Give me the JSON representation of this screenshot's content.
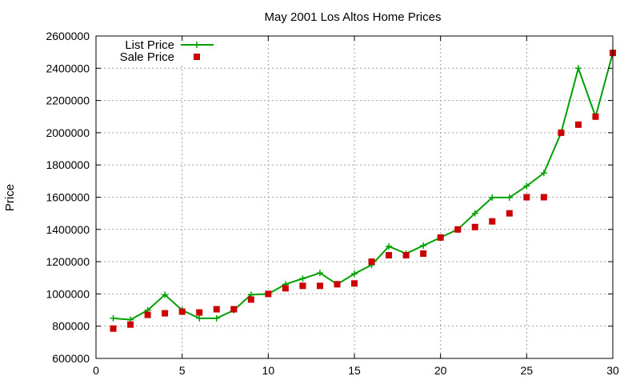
{
  "chart_data": {
    "type": "line",
    "title": "May 2001 Los Altos Home Prices",
    "xlabel": "",
    "ylabel": "Price",
    "xlim": [
      0,
      30
    ],
    "ylim": [
      600000,
      2600000
    ],
    "xticks": [
      0,
      5,
      10,
      15,
      20,
      25,
      30
    ],
    "yticks": [
      600000,
      800000,
      1000000,
      1200000,
      1400000,
      1600000,
      1800000,
      2000000,
      2200000,
      2400000,
      2600000
    ],
    "xtick_labels": [
      "0",
      "5",
      "10",
      "15",
      "20",
      "25",
      "30"
    ],
    "ytick_labels": [
      "600000",
      "800000",
      "1000000",
      "1200000",
      "1400000",
      "1600000",
      "1800000",
      "2000000",
      "2200000",
      "2400000",
      "2600000"
    ],
    "grid": true,
    "legend_position": "top-left",
    "series": [
      {
        "name": "List Price",
        "style": "linespoints",
        "marker": "plus",
        "color": "#00a000",
        "x": [
          1,
          2,
          3,
          4,
          5,
          6,
          7,
          8,
          9,
          10,
          11,
          12,
          13,
          14,
          15,
          16,
          17,
          18,
          19,
          20,
          21,
          22,
          23,
          24,
          25,
          26,
          27,
          28,
          29,
          30
        ],
        "y": [
          849000,
          840000,
          899000,
          995000,
          899000,
          849000,
          849000,
          899000,
          995000,
          1000000,
          1060000,
          1095000,
          1130000,
          1060000,
          1125000,
          1180000,
          1295000,
          1250000,
          1300000,
          1350000,
          1400000,
          1500000,
          1598000,
          1598000,
          1670000,
          1750000,
          2000000,
          2400000,
          2100000,
          2495000
        ]
      },
      {
        "name": "Sale Price",
        "style": "points",
        "marker": "square",
        "color": "#cc0000",
        "x": [
          1,
          2,
          3,
          4,
          5,
          6,
          7,
          8,
          9,
          10,
          11,
          12,
          13,
          14,
          15,
          16,
          17,
          18,
          19,
          20,
          21,
          22,
          23,
          24,
          25,
          26,
          27,
          28,
          29,
          30
        ],
        "y": [
          785000,
          810000,
          870000,
          880000,
          890000,
          885000,
          905000,
          905000,
          965000,
          1000000,
          1035000,
          1050000,
          1050000,
          1060000,
          1065000,
          1200000,
          1240000,
          1240000,
          1250000,
          1350000,
          1400000,
          1415000,
          1450000,
          1500000,
          1600000,
          1600000,
          2000000,
          2050000,
          2100000,
          2495000
        ]
      }
    ]
  }
}
